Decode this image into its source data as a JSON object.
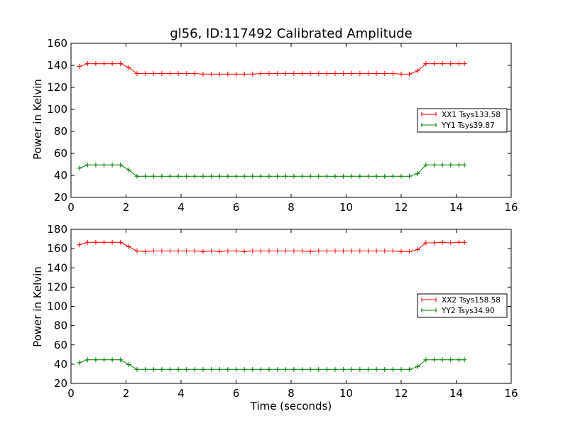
{
  "chart_data": [
    {
      "type": "line",
      "title": "gl56, ID:117492 Calibrated Amplitude",
      "xlabel": "",
      "ylabel": "Power in Kelvin",
      "xlim": [
        0,
        16
      ],
      "ylim": [
        20,
        160
      ],
      "xticks": [
        "0",
        "2",
        "4",
        "6",
        "8",
        "10",
        "12",
        "14",
        "16"
      ],
      "yticks": [
        "20",
        "40",
        "60",
        "80",
        "100",
        "120",
        "140",
        "160"
      ],
      "legend_position": "right",
      "x": [
        0.3,
        0.6,
        0.9,
        1.2,
        1.5,
        1.8,
        2.1,
        2.4,
        2.7,
        3.0,
        3.3,
        3.6,
        3.9,
        4.2,
        4.5,
        4.8,
        5.1,
        5.4,
        5.7,
        6.0,
        6.3,
        6.6,
        6.9,
        7.2,
        7.5,
        7.8,
        8.1,
        8.4,
        8.7,
        9.0,
        9.3,
        9.6,
        9.9,
        10.2,
        10.5,
        10.8,
        11.1,
        11.4,
        11.7,
        12.0,
        12.3,
        12.6,
        12.9,
        13.2,
        13.5,
        13.8,
        14.1,
        14.3
      ],
      "series": [
        {
          "name": "XX1 Tsys133.58",
          "color": "#ff0000",
          "values": [
            139,
            141.5,
            141.5,
            141.5,
            141.5,
            141.5,
            138,
            132.5,
            132.5,
            132.5,
            132.5,
            132.5,
            132.5,
            132.5,
            132.5,
            132,
            132,
            132,
            132,
            132,
            132,
            132,
            132.5,
            132.5,
            132.5,
            132.5,
            132.5,
            132.5,
            132.5,
            132.5,
            132.5,
            132.5,
            132.5,
            132.5,
            132.5,
            132.5,
            132.5,
            132.5,
            132.5,
            132,
            132,
            135,
            141.5,
            141.5,
            141.5,
            141.5,
            141.5,
            141.5
          ]
        },
        {
          "name": "YY1 Tsys39.87",
          "color": "#008000",
          "values": [
            46.5,
            49.5,
            49.5,
            49.5,
            49.5,
            49.5,
            45,
            39.2,
            39.2,
            39.2,
            39.2,
            39.2,
            39.2,
            39.2,
            39.2,
            39.2,
            39.2,
            39.2,
            39.2,
            39.2,
            39.2,
            39.2,
            39.2,
            39.2,
            39.2,
            39.2,
            39.2,
            39.2,
            39.2,
            39.2,
            39.2,
            39.2,
            39.2,
            39.2,
            39.2,
            39.2,
            39.2,
            39.2,
            39.2,
            39.2,
            39.2,
            41.5,
            49.5,
            49.5,
            49.5,
            49.5,
            49.5,
            49.5
          ]
        }
      ]
    },
    {
      "type": "line",
      "title": "",
      "xlabel": "Time (seconds)",
      "ylabel": "Power in Kelvin",
      "xlim": [
        0,
        16
      ],
      "ylim": [
        20,
        180
      ],
      "xticks": [
        "0",
        "2",
        "4",
        "6",
        "8",
        "10",
        "12",
        "14",
        "16"
      ],
      "yticks": [
        "20",
        "40",
        "60",
        "80",
        "100",
        "120",
        "140",
        "160",
        "180"
      ],
      "legend_position": "right",
      "x": [
        0.3,
        0.6,
        0.9,
        1.2,
        1.5,
        1.8,
        2.1,
        2.4,
        2.7,
        3.0,
        3.3,
        3.6,
        3.9,
        4.2,
        4.5,
        4.8,
        5.1,
        5.4,
        5.7,
        6.0,
        6.3,
        6.6,
        6.9,
        7.2,
        7.5,
        7.8,
        8.1,
        8.4,
        8.7,
        9.0,
        9.3,
        9.6,
        9.9,
        10.2,
        10.5,
        10.8,
        11.1,
        11.4,
        11.7,
        12.0,
        12.3,
        12.6,
        12.9,
        13.2,
        13.5,
        13.8,
        14.1,
        14.3
      ],
      "series": [
        {
          "name": "XX2 Tsys158.58",
          "color": "#ff0000",
          "values": [
            164,
            166.5,
            166.5,
            166.5,
            166.5,
            166.5,
            162,
            157.5,
            157,
            157.5,
            157.5,
            157.5,
            157.5,
            157.5,
            157.5,
            157,
            157.5,
            157,
            157.5,
            157.5,
            157,
            157.5,
            157.5,
            157.5,
            157.5,
            157.5,
            157.5,
            157.5,
            157,
            157.5,
            157.5,
            157.5,
            157.5,
            157.5,
            157.5,
            157.5,
            157.5,
            157.5,
            157.5,
            157,
            157,
            159,
            166,
            166,
            166.5,
            166,
            166.5,
            166.5
          ]
        },
        {
          "name": "YY2 Tsys34.90",
          "color": "#008000",
          "values": [
            41.5,
            44.5,
            44.5,
            44.5,
            44.5,
            44.5,
            39.5,
            34.5,
            34.5,
            34.5,
            34.5,
            34.5,
            34.5,
            34.5,
            34.5,
            34.5,
            34.5,
            34.5,
            34.5,
            34.5,
            34.5,
            34.5,
            34.5,
            34.5,
            34.5,
            34.5,
            34.5,
            34.5,
            34.5,
            34.5,
            34.5,
            34.5,
            34.5,
            34.5,
            34.5,
            34.5,
            34.5,
            34.5,
            34.5,
            34.5,
            34.5,
            37.5,
            44.5,
            44.5,
            44.5,
            44.5,
            44.5,
            44.5
          ]
        }
      ]
    }
  ]
}
